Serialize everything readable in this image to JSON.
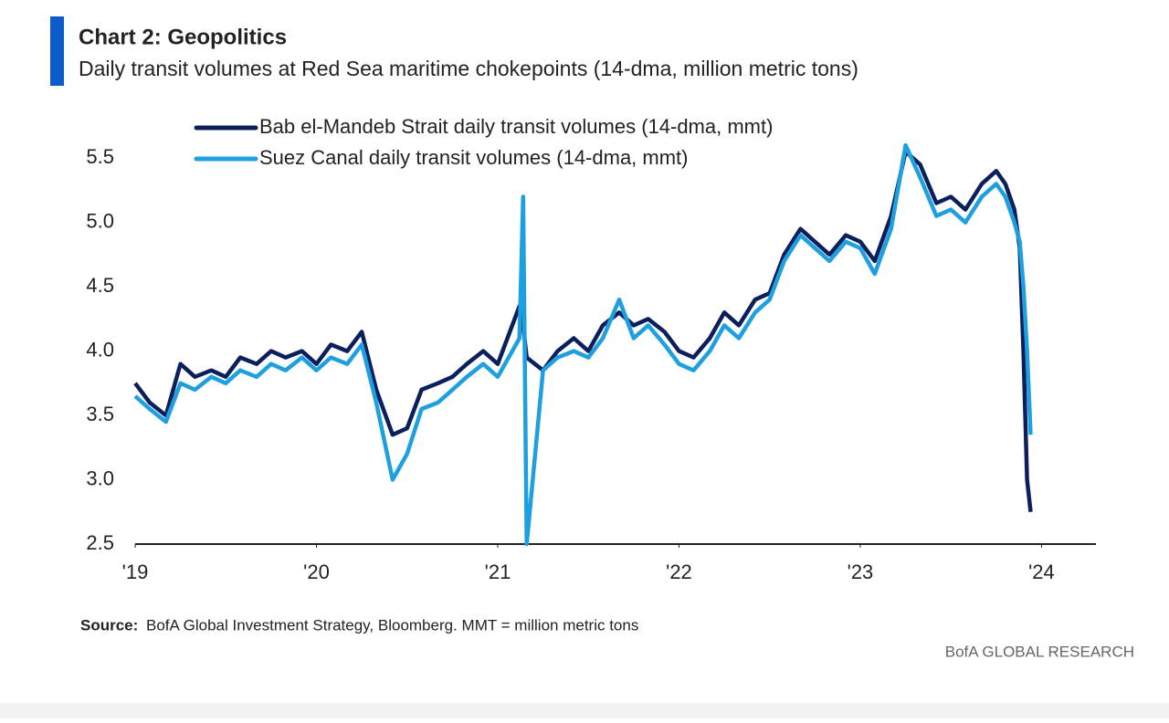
{
  "chart_data": {
    "type": "line",
    "title": "Chart 2: Geopolitics",
    "subtitle": "Daily transit volumes at Red Sea maritime chokepoints (14-dma, million metric tons)",
    "source_label": "Source:",
    "source": "BofA Global Investment Strategy, Bloomberg. MMT = million metric tons",
    "brand": "BofA GLOBAL RESEARCH",
    "x": [
      2019.0,
      2019.08,
      2019.17,
      2019.25,
      2019.33,
      2019.42,
      2019.5,
      2019.58,
      2019.67,
      2019.75,
      2019.83,
      2019.92,
      2020.0,
      2020.08,
      2020.17,
      2020.25,
      2020.33,
      2020.42,
      2020.5,
      2020.58,
      2020.67,
      2020.75,
      2020.83,
      2020.92,
      2021.0,
      2021.08,
      2021.12,
      2021.14,
      2021.16,
      2021.25,
      2021.33,
      2021.42,
      2021.5,
      2021.58,
      2021.67,
      2021.75,
      2021.83,
      2021.92,
      2022.0,
      2022.08,
      2022.17,
      2022.25,
      2022.33,
      2022.42,
      2022.5,
      2022.58,
      2022.67,
      2022.75,
      2022.83,
      2022.92,
      2023.0,
      2023.08,
      2023.17,
      2023.25,
      2023.33,
      2023.42,
      2023.5,
      2023.58,
      2023.67,
      2023.75,
      2023.8,
      2023.85,
      2023.88,
      2023.9,
      2023.92,
      2023.94
    ],
    "series": [
      {
        "name": "Bab el-Mandeb Strait daily transit volumes (14-dma, mmt)",
        "color": "#0b1f5c",
        "values": [
          3.75,
          3.6,
          3.5,
          3.9,
          3.8,
          3.85,
          3.8,
          3.95,
          3.9,
          4.0,
          3.95,
          4.0,
          3.9,
          4.05,
          4.0,
          4.15,
          3.7,
          3.35,
          3.4,
          3.7,
          3.75,
          3.8,
          3.9,
          4.0,
          3.9,
          4.2,
          4.35,
          4.2,
          3.95,
          3.85,
          4.0,
          4.1,
          4.0,
          4.2,
          4.3,
          4.2,
          4.25,
          4.15,
          4.0,
          3.95,
          4.1,
          4.3,
          4.2,
          4.4,
          4.45,
          4.75,
          4.95,
          4.85,
          4.75,
          4.9,
          4.85,
          4.7,
          5.05,
          5.55,
          5.45,
          5.15,
          5.2,
          5.1,
          5.3,
          5.4,
          5.3,
          5.1,
          4.8,
          4.0,
          3.0,
          2.75
        ]
      },
      {
        "name": "Suez Canal daily transit volumes (14-dma, mmt)",
        "color": "#1ea0e0",
        "values": [
          3.65,
          3.55,
          3.45,
          3.75,
          3.7,
          3.8,
          3.75,
          3.85,
          3.8,
          3.9,
          3.85,
          3.95,
          3.85,
          3.95,
          3.9,
          4.05,
          3.6,
          3.0,
          3.2,
          3.55,
          3.6,
          3.7,
          3.8,
          3.9,
          3.8,
          4.0,
          4.1,
          5.2,
          2.5,
          3.85,
          3.95,
          4.0,
          3.95,
          4.1,
          4.4,
          4.1,
          4.2,
          4.05,
          3.9,
          3.85,
          4.0,
          4.2,
          4.1,
          4.3,
          4.4,
          4.7,
          4.9,
          4.8,
          4.7,
          4.85,
          4.8,
          4.6,
          4.95,
          5.6,
          5.35,
          5.05,
          5.1,
          5.0,
          5.2,
          5.3,
          5.2,
          5.0,
          4.85,
          4.5,
          4.0,
          3.35
        ]
      }
    ],
    "xlim": [
      2019,
      2024.3
    ],
    "xticks": [
      {
        "value": 2019,
        "label": "'19"
      },
      {
        "value": 2020,
        "label": "'20"
      },
      {
        "value": 2021,
        "label": "'21"
      },
      {
        "value": 2022,
        "label": "'22"
      },
      {
        "value": 2023,
        "label": "'23"
      },
      {
        "value": 2024,
        "label": "'24"
      }
    ],
    "ylim": [
      2.5,
      5.7
    ],
    "yticks": [
      2.5,
      {
        "value": 3,
        "label": "3.0"
      },
      3.5,
      {
        "value": 4,
        "label": "4.0"
      },
      4.5,
      {
        "value": 5,
        "label": "5.0"
      },
      5.5
    ]
  }
}
